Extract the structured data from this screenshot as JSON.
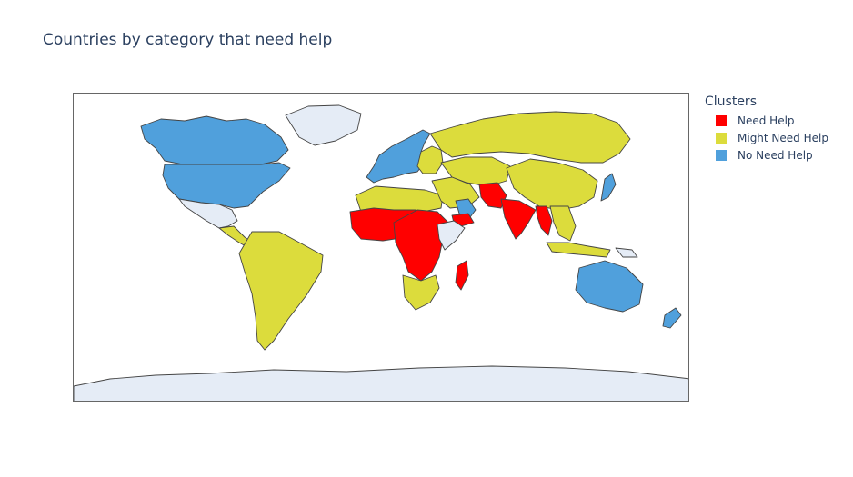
{
  "title": "Countries by category that need help",
  "legend": {
    "title": "Clusters",
    "items": [
      {
        "label": "Need Help",
        "color": "#ff0000"
      },
      {
        "label": "Might Need Help",
        "color": "#dcdc3c"
      },
      {
        "label": "No Need Help",
        "color": "#50a0dc"
      }
    ]
  },
  "colors": {
    "no_data": "#e5ecf6",
    "border": "#444444",
    "ocean": "#ffffff"
  },
  "chart_data": {
    "type": "choropleth",
    "categories": [
      "Need Help",
      "Might Need Help",
      "No Need Help"
    ],
    "regions": [
      {
        "name": "Greenland",
        "cluster": null
      },
      {
        "name": "Canada",
        "cluster": "No Need Help"
      },
      {
        "name": "United States",
        "cluster": "No Need Help"
      },
      {
        "name": "Mexico",
        "cluster": null
      },
      {
        "name": "Central America",
        "cluster": "Might Need Help"
      },
      {
        "name": "South America",
        "cluster": "Might Need Help"
      },
      {
        "name": "Western Europe",
        "cluster": "No Need Help"
      },
      {
        "name": "Eastern Europe",
        "cluster": "Might Need Help"
      },
      {
        "name": "Russia",
        "cluster": "Might Need Help"
      },
      {
        "name": "Central Asia",
        "cluster": "Might Need Help"
      },
      {
        "name": "China",
        "cluster": "Might Need Help"
      },
      {
        "name": "Japan",
        "cluster": "No Need Help"
      },
      {
        "name": "North Africa",
        "cluster": "Might Need Help"
      },
      {
        "name": "Middle East",
        "cluster": "Might Need Help"
      },
      {
        "name": "Arabian Gulf",
        "cluster": "No Need Help"
      },
      {
        "name": "Yemen",
        "cluster": "Need Help"
      },
      {
        "name": "Afghanistan/Pakistan",
        "cluster": "Need Help"
      },
      {
        "name": "India",
        "cluster": "Need Help"
      },
      {
        "name": "Myanmar",
        "cluster": "Need Help"
      },
      {
        "name": "Southeast Asia",
        "cluster": "Might Need Help"
      },
      {
        "name": "West Africa",
        "cluster": "Need Help"
      },
      {
        "name": "Central & East Africa",
        "cluster": "Need Help"
      },
      {
        "name": "Horn of Africa",
        "cluster": null
      },
      {
        "name": "Southern Africa",
        "cluster": "Might Need Help"
      },
      {
        "name": "Madagascar",
        "cluster": "Need Help"
      },
      {
        "name": "Indonesia",
        "cluster": "Might Need Help"
      },
      {
        "name": "Papua New Guinea",
        "cluster": null
      },
      {
        "name": "Australia",
        "cluster": "No Need Help"
      },
      {
        "name": "New Zealand",
        "cluster": "No Need Help"
      },
      {
        "name": "Antarctica",
        "cluster": null
      }
    ]
  }
}
